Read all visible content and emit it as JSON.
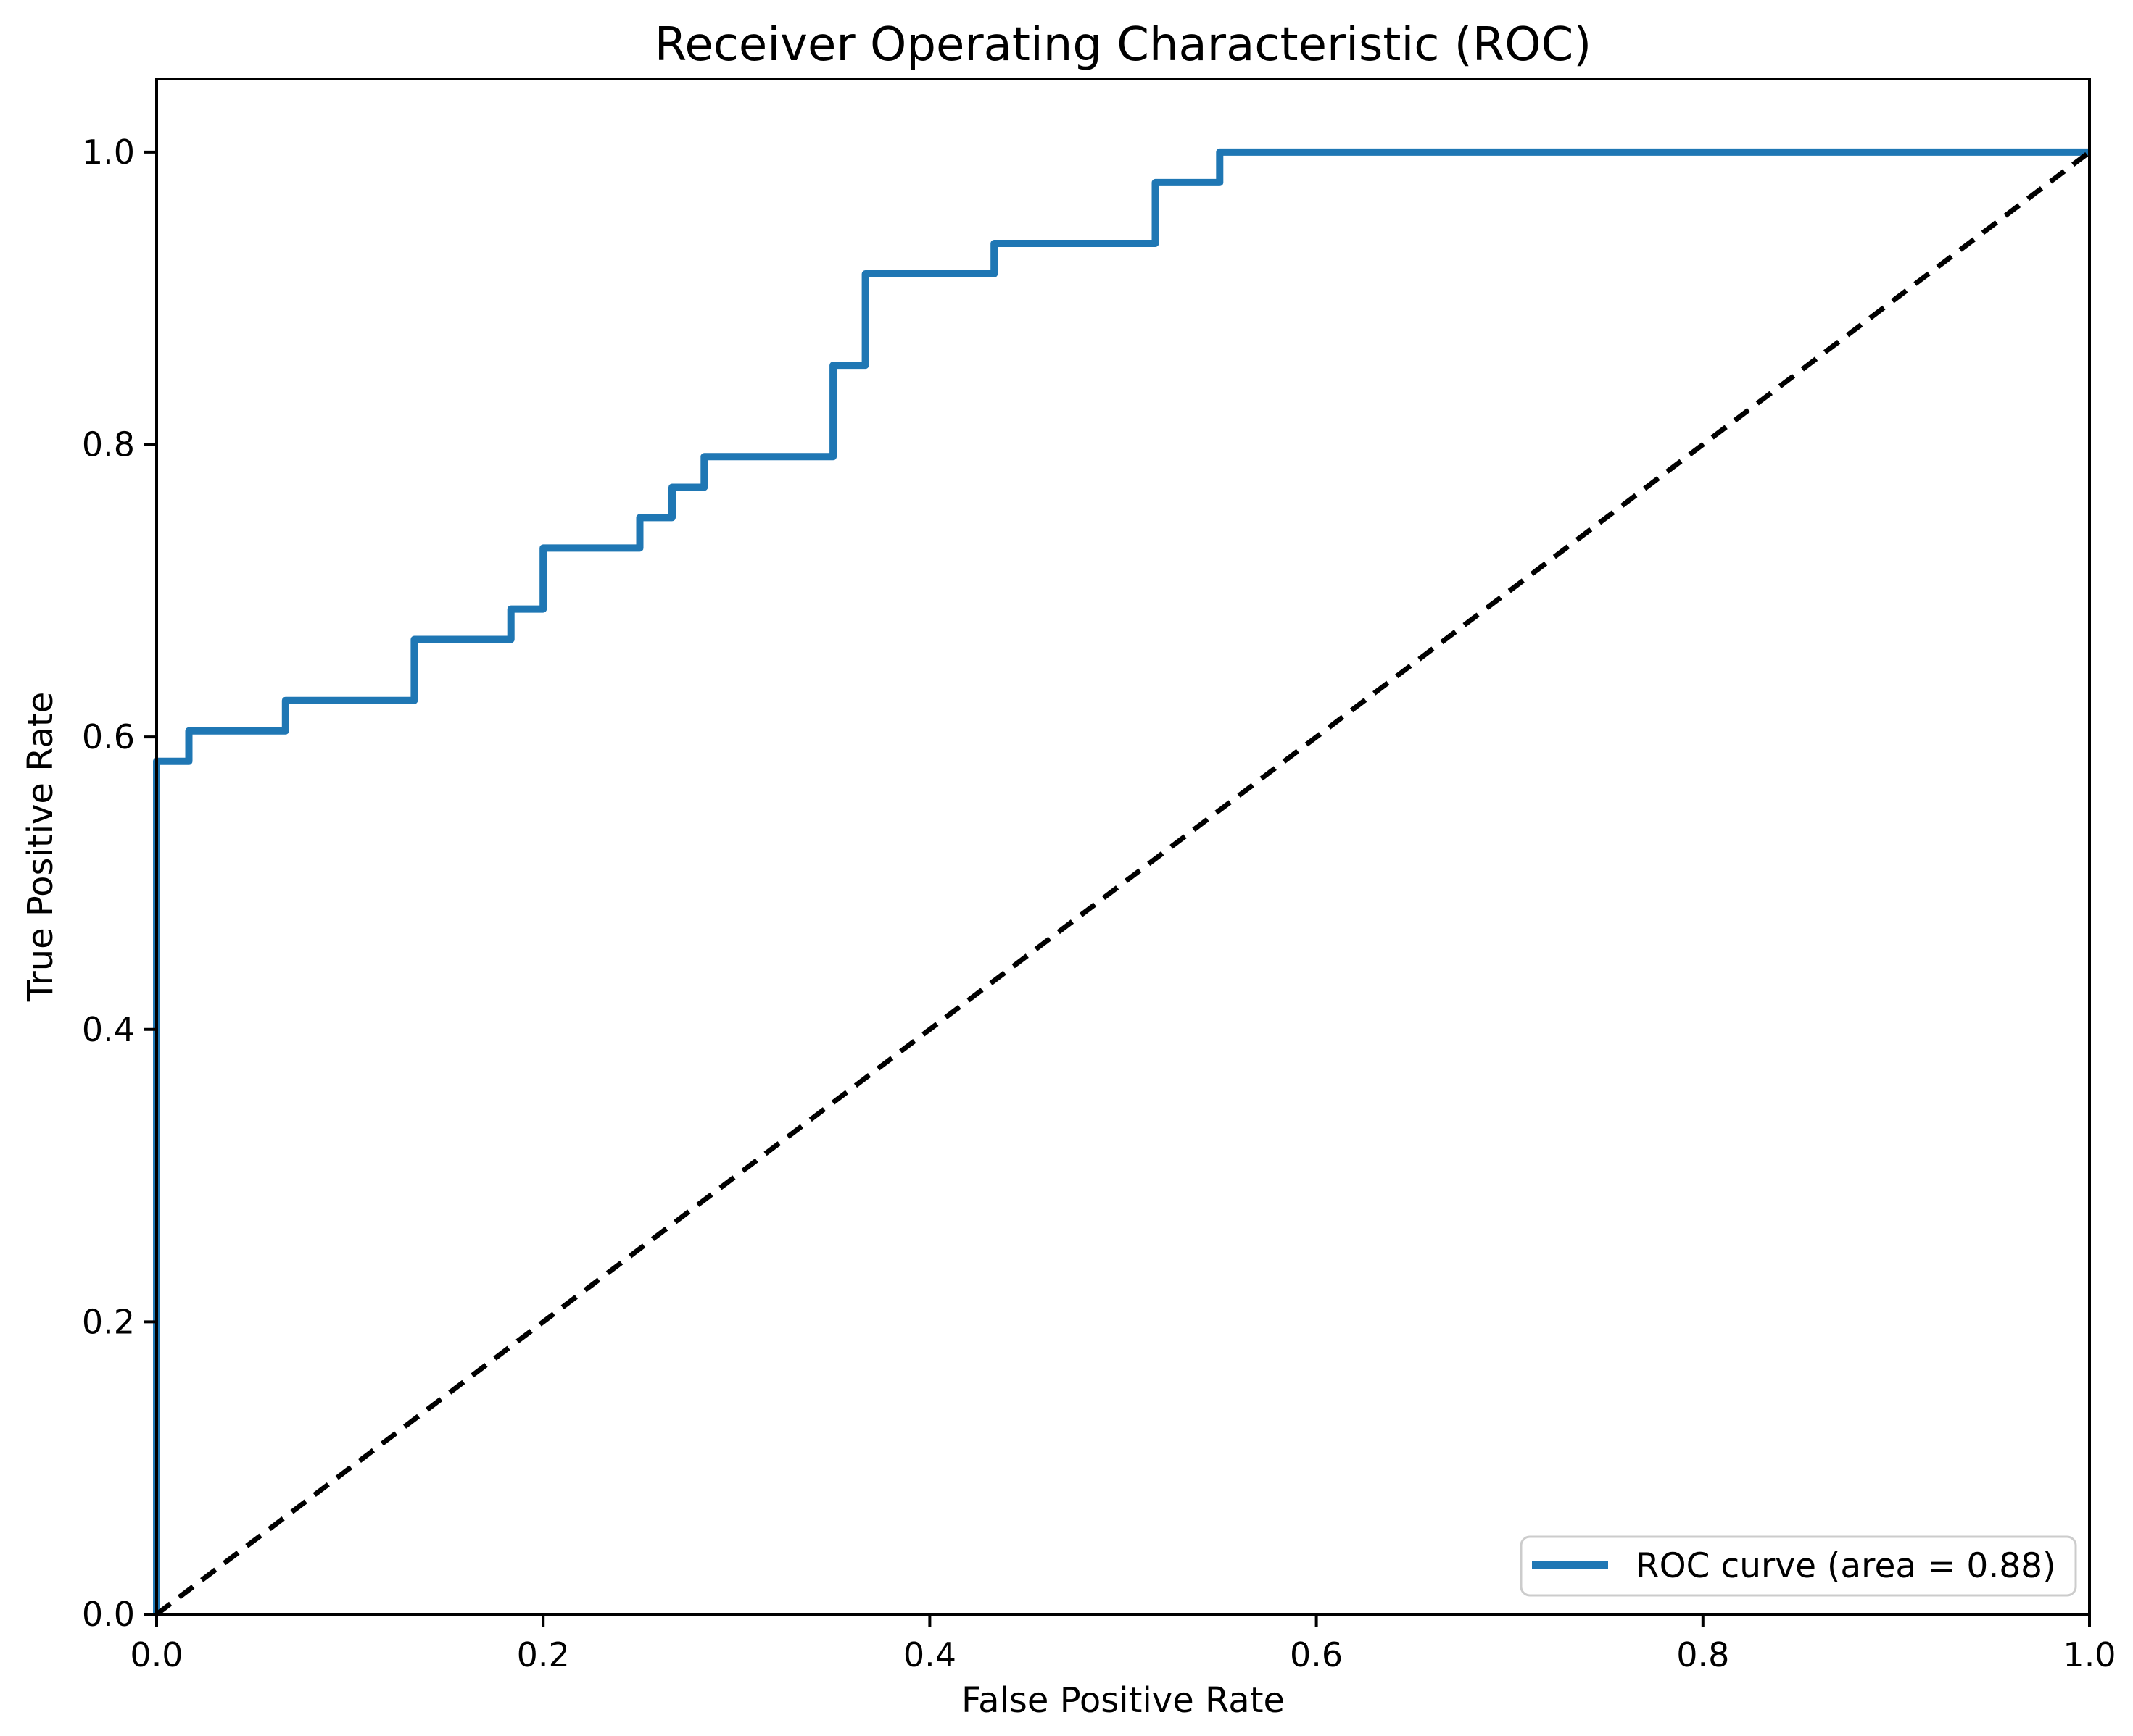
{
  "figure": {
    "background": "#ffffff",
    "title": "Receiver Operating Characteristic (ROC)"
  },
  "chart_data": {
    "type": "line",
    "title": "Receiver Operating Characteristic (ROC)",
    "xlabel": "False Positive Rate",
    "ylabel": "True Positive Rate",
    "xlim": [
      0.0,
      1.0
    ],
    "ylim": [
      0.0,
      1.05
    ],
    "grid": false,
    "x_ticks": [
      {
        "v": 0.0,
        "label": "0.0"
      },
      {
        "v": 0.2,
        "label": "0.2"
      },
      {
        "v": 0.4,
        "label": "0.4"
      },
      {
        "v": 0.6,
        "label": "0.6"
      },
      {
        "v": 0.8,
        "label": "0.8"
      },
      {
        "v": 1.0,
        "label": "1.0"
      }
    ],
    "y_ticks": [
      {
        "v": 0.0,
        "label": "0.0"
      },
      {
        "v": 0.2,
        "label": "0.2"
      },
      {
        "v": 0.4,
        "label": "0.4"
      },
      {
        "v": 0.6,
        "label": "0.6"
      },
      {
        "v": 0.8,
        "label": "0.8"
      },
      {
        "v": 1.0,
        "label": "1.0"
      }
    ],
    "series": [
      {
        "name": "ROC curve (area = 0.88)",
        "color": "#1f77b4",
        "style": "solid",
        "auc": 0.88,
        "points": [
          [
            0.0,
            0.0
          ],
          [
            0.0,
            0.5833
          ],
          [
            0.0167,
            0.5833
          ],
          [
            0.0167,
            0.6042
          ],
          [
            0.0667,
            0.6042
          ],
          [
            0.0667,
            0.625
          ],
          [
            0.1333,
            0.625
          ],
          [
            0.1333,
            0.6667
          ],
          [
            0.1833,
            0.6667
          ],
          [
            0.1833,
            0.6875
          ],
          [
            0.2,
            0.6875
          ],
          [
            0.2,
            0.7292
          ],
          [
            0.25,
            0.7292
          ],
          [
            0.25,
            0.75
          ],
          [
            0.2667,
            0.75
          ],
          [
            0.2667,
            0.7708
          ],
          [
            0.2833,
            0.7708
          ],
          [
            0.2833,
            0.7917
          ],
          [
            0.35,
            0.7917
          ],
          [
            0.35,
            0.8542
          ],
          [
            0.3667,
            0.8542
          ],
          [
            0.3667,
            0.9167
          ],
          [
            0.4333,
            0.9167
          ],
          [
            0.4333,
            0.9375
          ],
          [
            0.5167,
            0.9375
          ],
          [
            0.5167,
            0.9792
          ],
          [
            0.55,
            0.9792
          ],
          [
            0.55,
            1.0
          ],
          [
            1.0,
            1.0
          ]
        ]
      },
      {
        "name": "chance-diagonal",
        "color": "#000000",
        "style": "dashed",
        "points": [
          [
            0.0,
            0.0
          ],
          [
            1.0,
            1.0
          ]
        ]
      }
    ],
    "legend": {
      "position": "lower right",
      "entries": [
        {
          "label": "ROC curve (area = 0.88)",
          "color": "#1f77b4",
          "style": "solid"
        }
      ]
    }
  }
}
